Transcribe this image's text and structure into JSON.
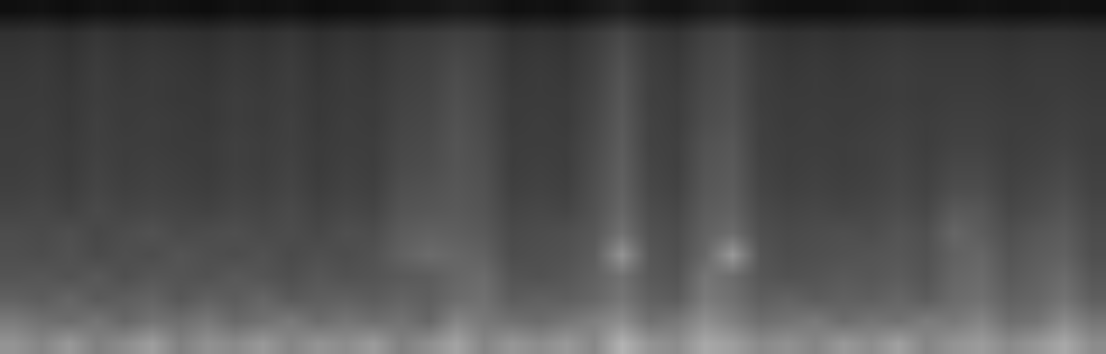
{
  "chart_data": {
    "type": "heatmap",
    "colors": [
      "#000000",
      "#ffffff"
    ],
    "zlim": [
      0,
      100
    ],
    "xlim": [
      -0.5,
      39.5
    ],
    "ylim": [
      -0.5,
      15.5
    ],
    "tick_labels": false,
    "grid": false,
    "cells": [
      [
        58,
        52,
        60,
        50,
        55,
        62,
        50,
        57,
        54,
        60,
        52,
        58,
        55,
        61,
        50,
        56,
        64,
        52,
        59,
        55,
        60,
        53,
        70,
        58,
        55,
        66,
        62,
        54,
        57,
        52,
        60,
        55,
        63,
        52,
        58,
        61,
        54,
        59,
        66,
        55
      ],
      [
        48,
        44,
        42,
        46,
        40,
        45,
        43,
        47,
        41,
        44,
        48,
        42,
        46,
        43,
        45,
        40,
        52,
        47,
        44,
        42,
        46,
        50,
        55,
        44,
        47,
        56,
        50,
        43,
        45,
        48,
        42,
        46,
        44,
        49,
        47,
        52,
        43,
        45,
        54,
        46
      ],
      [
        38,
        36,
        40,
        35,
        37,
        39,
        34,
        38,
        36,
        40,
        35,
        37,
        38,
        36,
        39,
        37,
        42,
        44,
        36,
        38,
        37,
        40,
        46,
        38,
        36,
        48,
        44,
        37,
        39,
        36,
        38,
        37,
        40,
        36,
        42,
        44,
        38,
        40,
        45,
        37
      ],
      [
        33,
        34,
        32,
        35,
        31,
        34,
        33,
        32,
        35,
        33,
        31,
        34,
        32,
        33,
        35,
        36,
        40,
        42,
        33,
        32,
        34,
        38,
        44,
        35,
        33,
        46,
        42,
        34,
        32,
        33,
        35,
        34,
        36,
        33,
        40,
        42,
        35,
        38,
        42,
        34
      ],
      [
        31,
        30,
        32,
        29,
        31,
        30,
        33,
        31,
        30,
        32,
        29,
        31,
        30,
        32,
        38,
        42,
        40,
        38,
        30,
        31,
        32,
        36,
        58,
        34,
        31,
        40,
        60,
        33,
        30,
        31,
        32,
        33,
        34,
        32,
        38,
        40,
        33,
        36,
        38,
        31
      ],
      [
        30,
        29,
        31,
        28,
        30,
        32,
        29,
        30,
        31,
        29,
        30,
        28,
        31,
        30,
        36,
        38,
        37,
        35,
        29,
        30,
        31,
        34,
        44,
        32,
        30,
        38,
        42,
        31,
        29,
        30,
        31,
        30,
        33,
        31,
        40,
        36,
        31,
        34,
        36,
        30
      ],
      [
        27,
        28,
        26,
        29,
        27,
        28,
        27,
        26,
        28,
        27,
        29,
        26,
        28,
        27,
        33,
        34,
        35,
        33,
        27,
        28,
        27,
        32,
        40,
        30,
        28,
        36,
        38,
        29,
        27,
        28,
        27,
        28,
        30,
        28,
        35,
        34,
        28,
        30,
        33,
        28
      ],
      [
        25,
        26,
        24,
        27,
        25,
        26,
        25,
        24,
        26,
        25,
        27,
        24,
        26,
        25,
        31,
        32,
        34,
        32,
        25,
        26,
        25,
        31,
        38,
        28,
        26,
        34,
        36,
        27,
        25,
        26,
        25,
        26,
        28,
        26,
        30,
        30,
        26,
        28,
        30,
        26
      ],
      [
        24,
        25,
        23,
        26,
        24,
        25,
        24,
        23,
        25,
        24,
        26,
        23,
        25,
        24,
        29,
        30,
        33,
        31,
        24,
        25,
        24,
        30,
        37,
        27,
        25,
        33,
        35,
        26,
        24,
        25,
        24,
        25,
        27,
        25,
        28,
        28,
        25,
        26,
        28,
        25
      ],
      [
        24,
        24,
        23,
        25,
        24,
        24,
        23,
        23,
        25,
        24,
        25,
        23,
        24,
        24,
        28,
        29,
        33,
        30,
        24,
        24,
        24,
        29,
        36,
        26,
        25,
        32,
        34,
        25,
        24,
        24,
        24,
        25,
        26,
        24,
        26,
        26,
        24,
        25,
        26,
        24
      ],
      [
        23,
        24,
        22,
        25,
        23,
        24,
        23,
        22,
        24,
        23,
        25,
        22,
        24,
        23,
        27,
        28,
        32,
        29,
        23,
        24,
        23,
        28,
        35,
        26,
        24,
        30,
        32,
        25,
        23,
        24,
        23,
        24,
        25,
        24,
        25,
        25,
        24,
        24,
        25,
        24
      ],
      [
        23,
        23,
        22,
        24,
        23,
        23,
        22,
        22,
        24,
        23,
        24,
        22,
        23,
        23,
        26,
        27,
        31,
        28,
        23,
        23,
        23,
        27,
        34,
        25,
        24,
        29,
        31,
        24,
        23,
        23,
        23,
        23,
        24,
        23,
        24,
        24,
        23,
        23,
        24,
        23
      ],
      [
        22,
        23,
        21,
        24,
        22,
        23,
        22,
        21,
        23,
        22,
        24,
        21,
        23,
        22,
        25,
        26,
        30,
        27,
        22,
        23,
        22,
        26,
        33,
        25,
        23,
        28,
        30,
        24,
        22,
        23,
        22,
        23,
        24,
        23,
        23,
        23,
        22,
        23,
        23,
        22
      ],
      [
        21,
        22,
        20,
        23,
        21,
        22,
        21,
        20,
        22,
        21,
        23,
        20,
        22,
        21,
        24,
        25,
        28,
        26,
        21,
        22,
        21,
        25,
        31,
        24,
        22,
        27,
        29,
        23,
        21,
        22,
        21,
        22,
        23,
        22,
        22,
        22,
        21,
        22,
        22,
        21
      ],
      [
        19,
        20,
        18,
        21,
        19,
        20,
        19,
        18,
        20,
        19,
        21,
        18,
        20,
        19,
        22,
        23,
        25,
        24,
        19,
        20,
        19,
        23,
        28,
        22,
        20,
        25,
        27,
        21,
        19,
        20,
        19,
        20,
        21,
        20,
        20,
        20,
        19,
        20,
        20,
        19
      ],
      [
        6,
        7,
        5,
        7,
        6,
        7,
        6,
        5,
        7,
        6,
        7,
        5,
        6,
        6,
        8,
        8,
        10,
        9,
        6,
        7,
        6,
        9,
        12,
        8,
        7,
        10,
        11,
        7,
        6,
        6,
        6,
        7,
        7,
        6,
        6,
        7,
        6,
        6,
        7,
        6
      ]
    ]
  }
}
